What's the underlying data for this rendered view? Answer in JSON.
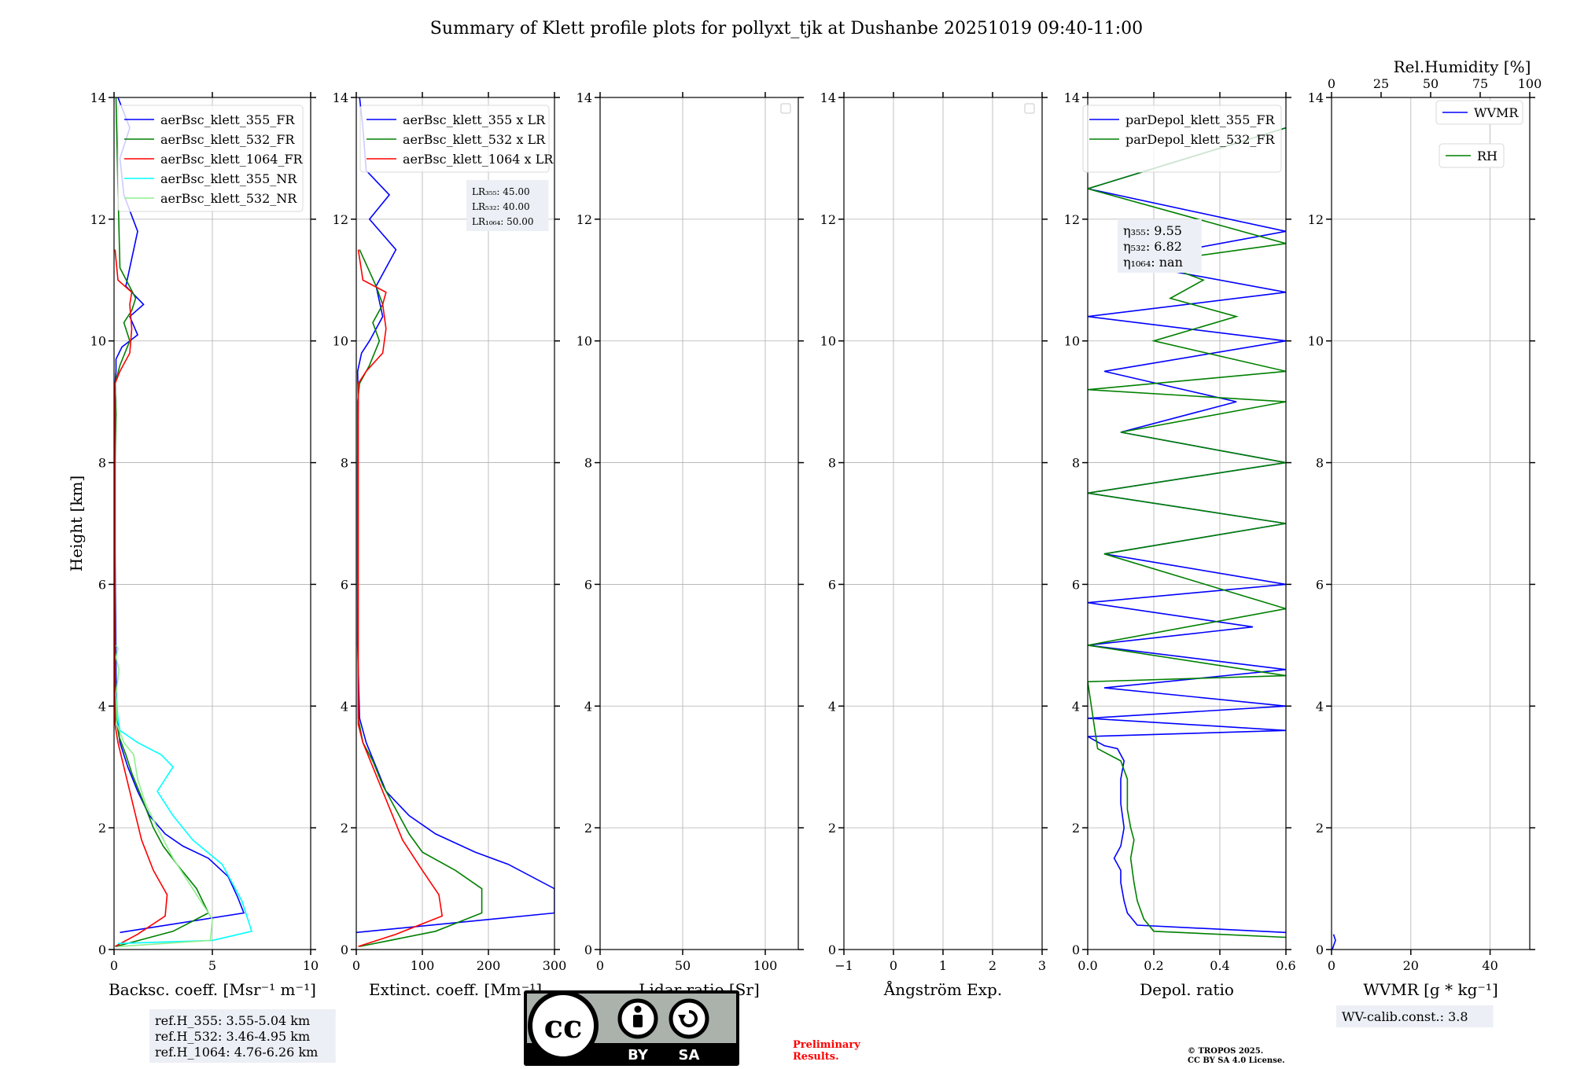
{
  "title": "Summary of Klett profile plots for pollyxt_tjk at Dushanbe 20251019 09:40-11:00",
  "chart_data": [
    {
      "id": "backscatter",
      "type": "line",
      "xlabel": "Backsc. coeff. [Msr⁻¹ m⁻¹]",
      "ylabel": "Height [km]",
      "xlim": [
        0,
        10
      ],
      "ylim": [
        0,
        14
      ],
      "xticks": [
        "0",
        "5",
        "10"
      ],
      "yticks": [
        "0",
        "2",
        "4",
        "6",
        "8",
        "10",
        "12",
        "14"
      ],
      "xticks_values": [
        0,
        5,
        10
      ],
      "grid": true,
      "legend": "upper-right",
      "series": [
        {
          "name": "aerBsc_klett_355_FR",
          "color": "#0000ff",
          "x": [
            0.3,
            6.6,
            6.3,
            5.8,
            4.8,
            3.5,
            2.6,
            1.8,
            1.2,
            0.7,
            0.3,
            0.15,
            0.1,
            0.08,
            0.05,
            0.05,
            0.05,
            0.05,
            0.08,
            0.05,
            0.1,
            0.1,
            0.4,
            1.2,
            0.8,
            1.5,
            0.6,
            1.2,
            0.5,
            0.3,
            0.8,
            0.2
          ],
          "y": [
            0.28,
            0.6,
            0.85,
            1.2,
            1.5,
            1.7,
            1.9,
            2.2,
            2.6,
            3.0,
            3.4,
            3.8,
            4.5,
            5.5,
            6.5,
            7.5,
            8.0,
            8.5,
            9.0,
            9.3,
            9.5,
            9.7,
            9.9,
            10.1,
            10.4,
            10.6,
            10.9,
            11.8,
            12.4,
            13.0,
            13.5,
            14.0
          ]
        },
        {
          "name": "aerBsc_klett_532_FR",
          "color": "#008000",
          "x": [
            0.1,
            3.0,
            4.8,
            4.2,
            3.2,
            2.5,
            2.0,
            1.4,
            0.9,
            0.6,
            0.25,
            0.1,
            0.05,
            0.05,
            0.05,
            0.05,
            0.1,
            0.05,
            0.3,
            0.8,
            0.5,
            0.9,
            1.1,
            0.3,
            0.2,
            0.1
          ],
          "y": [
            0.05,
            0.3,
            0.6,
            1.0,
            1.4,
            1.7,
            2.0,
            2.5,
            2.9,
            3.2,
            3.5,
            3.8,
            4.5,
            6,
            7,
            8,
            8.8,
            9.3,
            9.6,
            10.0,
            10.3,
            10.5,
            10.7,
            11.2,
            12.5,
            14.0
          ]
        },
        {
          "name": "aerBsc_klett_1064_FR",
          "color": "#ff0000",
          "x": [
            0.05,
            1.2,
            2.6,
            2.7,
            2.0,
            1.4,
            1.1,
            0.8,
            0.5,
            0.2,
            0.05,
            0.05,
            0.3,
            0.8,
            0.9,
            0.8,
            0.9,
            0.2,
            0.05
          ],
          "y": [
            0.05,
            0.25,
            0.55,
            0.9,
            1.3,
            1.8,
            2.2,
            2.6,
            3.0,
            3.4,
            3.7,
            9.3,
            9.5,
            9.8,
            10.2,
            10.6,
            10.8,
            11.0,
            11.5
          ]
        },
        {
          "name": "aerBsc_klett_355_NR",
          "color": "#00ffff",
          "x": [
            0.2,
            5.0,
            7.0,
            6.5,
            5.5,
            4.0,
            3.0,
            2.2,
            3.0,
            2.4,
            1.2,
            0.3,
            0.2,
            0.1
          ],
          "y": [
            0.1,
            0.15,
            0.3,
            0.8,
            1.4,
            1.8,
            2.2,
            2.6,
            3.0,
            3.2,
            3.4,
            3.6,
            3.8,
            4.2
          ]
        },
        {
          "name": "aerBsc_klett_532_NR",
          "color": "#90ee90",
          "x": [
            0.3,
            4.9,
            5.0,
            4.0,
            3.0,
            2.2,
            1.6,
            1.2,
            1.0,
            0.5,
            0.15,
            0.1,
            0.25,
            0.1,
            0.2,
            0.1
          ],
          "y": [
            0.05,
            0.15,
            0.5,
            1.0,
            1.5,
            2.0,
            2.4,
            2.8,
            3.2,
            3.4,
            3.7,
            4.2,
            4.6,
            4.8,
            4.95,
            5.0
          ]
        }
      ],
      "info_box": [
        "ref.H_355: 3.55-5.04 km",
        "ref.H_532: 3.46-4.95 km",
        "ref.H_1064: 4.76-6.26 km"
      ]
    },
    {
      "id": "extinction",
      "type": "line",
      "xlabel": "Extinct. coeff. [Mm⁻¹]",
      "xlim": [
        0,
        300
      ],
      "ylim": [
        0,
        14
      ],
      "xticks": [
        "0",
        "100",
        "200",
        "300"
      ],
      "yticks": [
        "0",
        "2",
        "4",
        "6",
        "8",
        "10",
        "12",
        "14"
      ],
      "xticks_values": [
        0,
        100,
        200,
        300
      ],
      "grid": true,
      "legend": "upper-right",
      "series": [
        {
          "name": "aerBsc_klett_355 x LR",
          "color": "#0000ff",
          "x": [
            0,
            300,
            300,
            230,
            180,
            160,
            120,
            80,
            45,
            30,
            15,
            5,
            2,
            2,
            2,
            3,
            2,
            8,
            20,
            40,
            30,
            60,
            20,
            50,
            15,
            10,
            5
          ],
          "y": [
            0.28,
            0.6,
            1.0,
            1.4,
            1.6,
            1.7,
            1.9,
            2.2,
            2.6,
            3.0,
            3.4,
            3.8,
            5,
            7,
            8,
            9,
            9.5,
            9.8,
            10.0,
            10.4,
            10.9,
            11.5,
            12.0,
            12.4,
            12.8,
            13.5,
            14.0
          ]
        },
        {
          "name": "aerBsc_klett_532 x LR",
          "color": "#008000",
          "x": [
            5,
            120,
            190,
            190,
            150,
            100,
            80,
            60,
            40,
            25,
            10,
            3,
            2,
            2,
            5,
            20,
            35,
            25,
            40,
            30,
            5
          ],
          "y": [
            0.05,
            0.3,
            0.6,
            1.0,
            1.3,
            1.6,
            1.9,
            2.3,
            2.7,
            3.1,
            3.4,
            3.8,
            6,
            9,
            9.3,
            9.6,
            10.0,
            10.3,
            10.6,
            10.9,
            11.5
          ]
        },
        {
          "name": "aerBsc_klett_1064 x LR",
          "color": "#ff0000",
          "x": [
            3,
            60,
            130,
            125,
            100,
            70,
            55,
            40,
            25,
            10,
            3,
            3,
            15,
            40,
            45,
            40,
            45,
            10,
            3
          ],
          "y": [
            0.05,
            0.25,
            0.55,
            0.9,
            1.3,
            1.8,
            2.2,
            2.6,
            3.0,
            3.4,
            3.7,
            9.3,
            9.5,
            9.8,
            10.2,
            10.6,
            10.8,
            11.0,
            11.5
          ]
        }
      ],
      "info_box": [
        "LR₃₅₅: 45.00",
        "LR₅₃₂: 40.00",
        "LR₁₀₆₄: 50.00"
      ]
    },
    {
      "id": "lidar_ratio",
      "type": "line",
      "xlabel": "Lidar ratio [Sr]",
      "xlim": [
        0,
        120
      ],
      "ylim": [
        0,
        14
      ],
      "xticks": [
        "0",
        "50",
        "100"
      ],
      "yticks": [
        "0",
        "2",
        "4",
        "6",
        "8",
        "10",
        "12",
        "14"
      ],
      "xticks_values": [
        0,
        50,
        100
      ],
      "grid": true,
      "series": []
    },
    {
      "id": "angstrom",
      "type": "line",
      "xlabel": "Ångström Exp.",
      "xlim": [
        -1,
        3
      ],
      "ylim": [
        0,
        14
      ],
      "xticks": [
        "−1",
        "0",
        "1",
        "2",
        "3"
      ],
      "yticks": [
        "0",
        "2",
        "4",
        "6",
        "8",
        "10",
        "12",
        "14"
      ],
      "xticks_values": [
        -1,
        0,
        1,
        2,
        3
      ],
      "grid": true,
      "series": []
    },
    {
      "id": "depol",
      "type": "line",
      "xlabel": "Depol. ratio",
      "xlim": [
        0,
        0.6
      ],
      "ylim": [
        0,
        14
      ],
      "xticks": [
        "0.0",
        "0.2",
        "0.4",
        "0.6"
      ],
      "yticks": [
        "0",
        "2",
        "4",
        "6",
        "8",
        "10",
        "12",
        "14"
      ],
      "xticks_values": [
        0,
        0.2,
        0.4,
        0.6
      ],
      "grid": true,
      "legend": "upper-right",
      "series": [
        {
          "name": "parDepol_klett_355_FR",
          "color": "#0000ff",
          "x": [
            0.6,
            0.15,
            0.12,
            0.11,
            0.1,
            0.1,
            0.08,
            0.1,
            0.11,
            0.1,
            0.1,
            0.11,
            0.09,
            0.05,
            0.0,
            0.6,
            0.0,
            0.6,
            0.05,
            0.6,
            0.0,
            0.5,
            0.0,
            0.6,
            0.05,
            0.6,
            0.0,
            0.6,
            0.1,
            0.45,
            0.05,
            0.6,
            0.0,
            0.6,
            0.1,
            0.6,
            0.0,
            0.6
          ],
          "y": [
            0.28,
            0.4,
            0.6,
            0.8,
            1.1,
            1.3,
            1.5,
            1.7,
            2.0,
            2.4,
            2.8,
            3.1,
            3.3,
            3.35,
            3.5,
            3.6,
            3.8,
            4.0,
            4.3,
            4.6,
            5.0,
            5.3,
            5.7,
            6.0,
            6.5,
            7.0,
            7.5,
            8.0,
            8.5,
            9.0,
            9.5,
            10.0,
            10.4,
            10.8,
            11.3,
            11.8,
            12.5,
            13.5
          ]
        },
        {
          "name": "parDepol_klett_532_FR",
          "color": "#008000",
          "x": [
            0.6,
            0.2,
            0.17,
            0.15,
            0.14,
            0.13,
            0.14,
            0.13,
            0.12,
            0.12,
            0.1,
            0.03,
            0.0,
            0.6,
            0.0,
            0.6,
            0.05,
            0.6,
            0.0,
            0.6,
            0.1,
            0.6,
            0.0,
            0.6,
            0.2,
            0.45,
            0.25,
            0.35,
            0.2,
            0.6,
            0.0,
            0.6
          ],
          "y": [
            0.2,
            0.3,
            0.5,
            0.8,
            1.1,
            1.5,
            1.8,
            2.0,
            2.3,
            2.8,
            3.1,
            3.3,
            4.4,
            4.5,
            5.0,
            5.6,
            6.5,
            7.0,
            7.5,
            8.0,
            8.5,
            9.0,
            9.2,
            9.5,
            10.0,
            10.4,
            10.7,
            11.0,
            11.3,
            11.6,
            12.5,
            13.5
          ]
        }
      ],
      "info_box": [
        "η₃₅₅: 9.55",
        "η₅₃₂: 6.82",
        "η₁₀₆₄: nan"
      ]
    },
    {
      "id": "wvmr",
      "type": "line",
      "xlabel": "WVMR [g * kg⁻¹]",
      "top_xlabel": "Rel.Humidity [%]",
      "xlim": [
        0,
        50
      ],
      "ylim": [
        0,
        14
      ],
      "xticks": [
        "0",
        "20",
        "40"
      ],
      "yticks": [
        "0",
        "2",
        "4",
        "6",
        "8",
        "10",
        "12",
        "14"
      ],
      "xticks_values": [
        0,
        20,
        40
      ],
      "top_xticks": [
        "0",
        "25",
        "50",
        "75",
        "100"
      ],
      "top_xticks_values": [
        0,
        25,
        50,
        75,
        100
      ],
      "grid": true,
      "series": [
        {
          "name": "WVMR",
          "color": "#0000ff",
          "x": [
            0.2,
            0.6,
            1.0,
            0.5
          ],
          "y": [
            0.0,
            0.08,
            0.15,
            0.25
          ]
        },
        {
          "name": "RH",
          "color": "#008000",
          "x": [],
          "y": []
        }
      ],
      "info_box": [
        "WV-calib.const.: 3.8"
      ]
    }
  ],
  "license": {
    "badge_cc": "cc",
    "badge_by": "BY",
    "badge_sa": "SA",
    "preliminary_line1": "Preliminary",
    "preliminary_line2": "Results.",
    "copyright_line1": "© TROPOS 2025.",
    "copyright_line2": "CC BY SA 4.0 License.",
    "preliminary_color": "#ff0000"
  }
}
